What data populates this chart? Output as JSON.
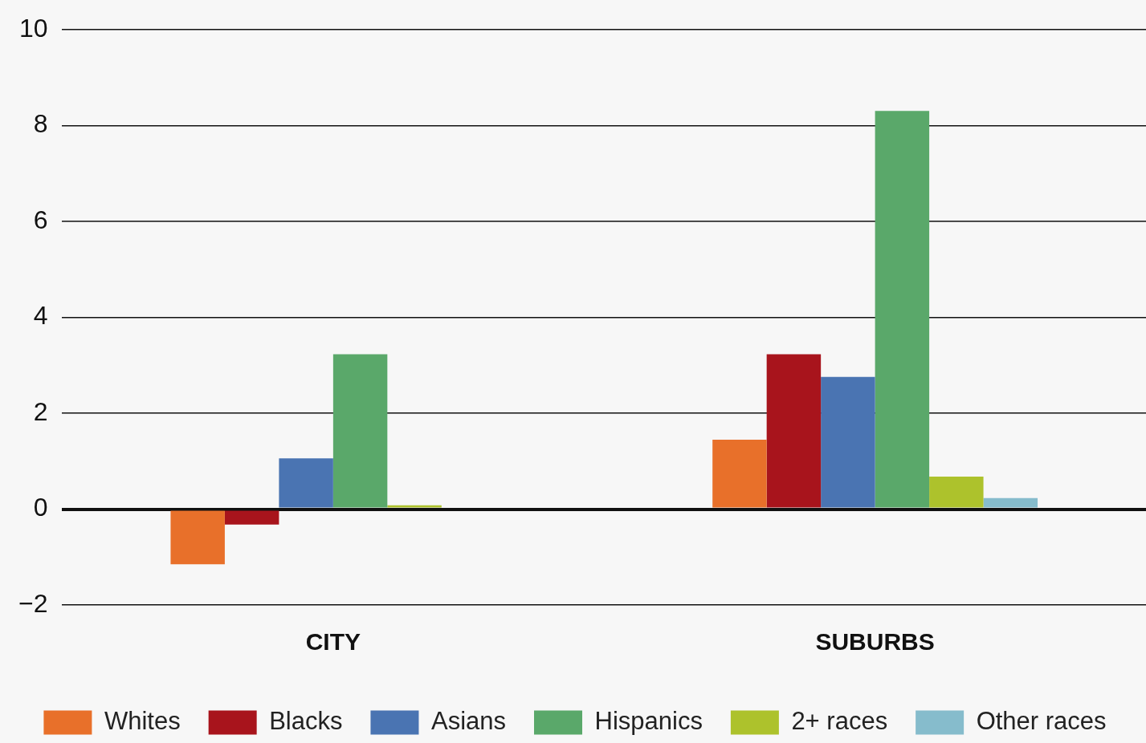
{
  "chart_data": {
    "type": "bar",
    "categories": [
      "CITY",
      "SUBURBS"
    ],
    "series": [
      {
        "name": "Whites",
        "color": "#e8702a",
        "values": [
          -1.15,
          1.45
        ]
      },
      {
        "name": "Blacks",
        "color": "#a8141c",
        "values": [
          -0.32,
          3.23
        ]
      },
      {
        "name": "Asians",
        "color": "#4a74b2",
        "values": [
          1.06,
          2.76
        ]
      },
      {
        "name": "Hispanics",
        "color": "#5aa86a",
        "values": [
          3.23,
          8.31
        ]
      },
      {
        "name": "2+ races",
        "color": "#adc22c",
        "values": [
          0.08,
          0.68
        ]
      },
      {
        "name": "Other races",
        "color": "#86bccc",
        "values": [
          null,
          0.23
        ]
      }
    ],
    "ylim": [
      -2,
      10
    ],
    "yticks": [
      {
        "value": -2,
        "label": "−2"
      },
      0,
      2,
      4,
      6,
      8,
      10
    ],
    "grid": "y",
    "legend": "bottom"
  }
}
